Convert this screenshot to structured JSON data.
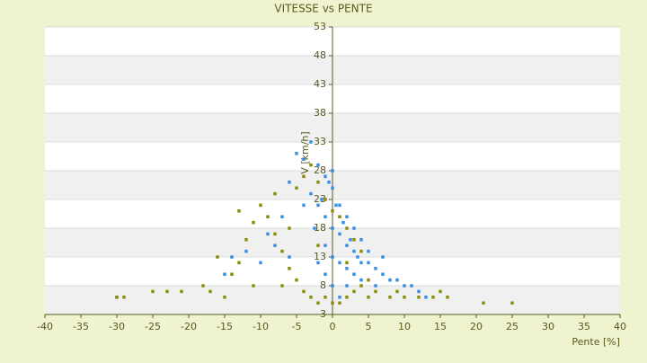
{
  "chart_data": {
    "type": "scatter",
    "title": "VITESSE vs PENTE",
    "x_label": "Pente [%]",
    "y_label": "V [km/h]",
    "xlim": [
      -40,
      40
    ],
    "xticks": [
      -40,
      -35,
      -30,
      -25,
      -20,
      -15,
      -10,
      -5,
      0,
      5,
      10,
      15,
      20,
      25,
      30,
      35,
      40
    ],
    "ylim": [
      3,
      53
    ],
    "yticks": [
      3,
      8,
      13,
      18,
      23,
      28,
      33,
      38,
      43,
      48,
      53
    ],
    "grid": true,
    "banded": true,
    "series": [
      {
        "color": "#3b8fe0",
        "x": [
          -5,
          -4,
          -3,
          -2,
          -1,
          0,
          1,
          2,
          3,
          4,
          5,
          6,
          7,
          8,
          9,
          10,
          11,
          12,
          13,
          -1,
          0,
          1,
          2,
          3,
          -2,
          -3,
          -1,
          0,
          1,
          2,
          3,
          4,
          5,
          -4,
          -6,
          -7,
          -8,
          -10,
          -12,
          -14,
          0,
          1,
          -1,
          2,
          6,
          0.5,
          -0.5,
          1.5,
          2.5,
          3.5,
          -2.5,
          -1.5,
          0,
          -2,
          4,
          -30,
          -15,
          -9,
          -6,
          7
        ],
        "values": [
          31,
          30,
          33,
          29,
          27,
          25,
          22,
          20,
          18,
          16,
          12,
          11,
          10,
          9,
          9,
          8,
          8,
          7,
          6,
          20,
          18,
          17,
          15,
          14,
          22,
          24,
          15,
          13,
          12,
          11,
          10,
          12,
          14,
          22,
          26,
          20,
          15,
          12,
          14,
          13,
          8,
          6,
          10,
          8,
          8,
          22,
          26,
          19,
          16,
          13,
          18,
          23,
          28,
          12,
          9,
          6,
          10,
          17,
          13,
          13
        ]
      },
      {
        "color": "#8c8c0a",
        "x": [
          -30,
          -29,
          -25,
          -23,
          -21,
          -18,
          -17,
          -15,
          -14,
          -13,
          -12,
          -11,
          -10,
          -9,
          -8,
          -7,
          -6,
          -5,
          -4,
          -3,
          -2,
          -1,
          0,
          1,
          2,
          3,
          4,
          5,
          6,
          8,
          10,
          12,
          14,
          16,
          21,
          25,
          -5,
          -4,
          -3,
          -2,
          -1,
          0,
          1,
          2,
          3,
          4,
          -6,
          -8,
          -11,
          -7,
          -2,
          2,
          5,
          9,
          -16,
          -13,
          15
        ],
        "values": [
          6,
          6,
          7,
          7,
          7,
          8,
          7,
          6,
          10,
          12,
          16,
          19,
          22,
          20,
          17,
          14,
          11,
          9,
          7,
          6,
          5,
          6,
          5,
          5,
          6,
          7,
          8,
          9,
          7,
          6,
          6,
          6,
          6,
          6,
          5,
          5,
          25,
          27,
          29,
          26,
          23,
          21,
          20,
          18,
          16,
          14,
          18,
          24,
          8,
          8,
          15,
          12,
          6,
          7,
          13,
          21,
          7
        ]
      }
    ]
  }
}
